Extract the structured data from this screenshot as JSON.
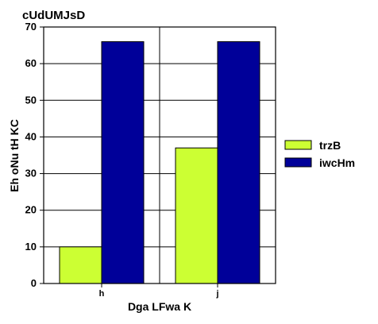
{
  "chart_data": {
    "type": "bar",
    "title": "cUdUMJsD",
    "xlabel": "Dga LFwa K",
    "ylabel": "Eh oNu  tH KC",
    "categories": [
      "h",
      "j"
    ],
    "series": [
      {
        "name": "trzB",
        "values": [
          10,
          37
        ],
        "color": "#ccff33"
      },
      {
        "name": "iwcHm",
        "values": [
          66,
          66
        ],
        "color": "#000099"
      }
    ],
    "ylim": [
      0,
      70
    ],
    "yticks": [
      0,
      10,
      20,
      30,
      40,
      50,
      60,
      70
    ],
    "grid": true,
    "legend_position": "right"
  }
}
